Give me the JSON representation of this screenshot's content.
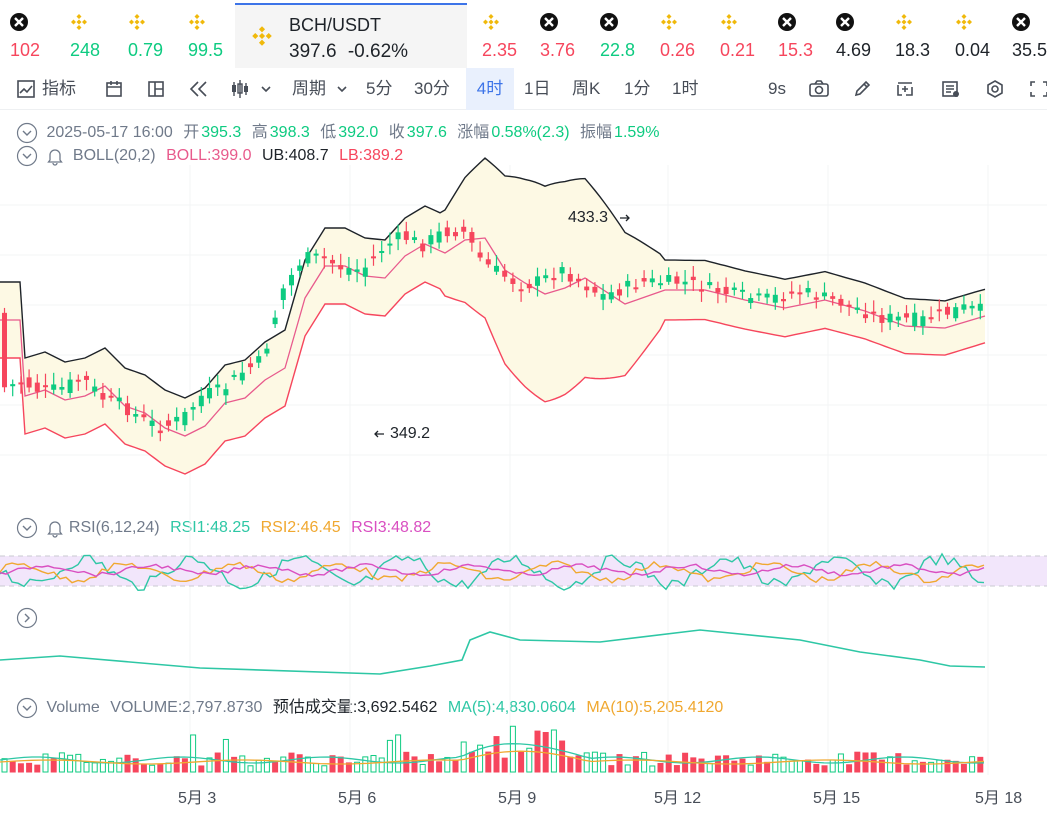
{
  "tickers_left": [
    {
      "price": "102",
      "dir": "dn",
      "icon": "x-coin-icon"
    },
    {
      "price": "248",
      "dir": "up",
      "icon": "binance-coin-icon"
    },
    {
      "price": "0.79",
      "dir": "up",
      "icon": "binance-coin-icon"
    },
    {
      "price": "99.5",
      "dir": "up",
      "icon": "binance-coin-icon"
    }
  ],
  "active_ticker": {
    "symbol": "BCH/USDT",
    "price": "397.6",
    "change": "-0.62%",
    "icon": "binance-coin-icon"
  },
  "tickers_right": [
    {
      "price": "2.35",
      "dir": "dn",
      "icon": "binance-coin-icon"
    },
    {
      "price": "3.76",
      "dir": "dn",
      "icon": "x-coin-icon"
    },
    {
      "price": "22.8",
      "dir": "up",
      "icon": "x-coin-icon"
    },
    {
      "price": "0.26",
      "dir": "dn",
      "icon": "binance-coin-icon"
    },
    {
      "price": "0.21",
      "dir": "dn",
      "icon": "binance-coin-icon"
    },
    {
      "price": "15.3",
      "dir": "dn",
      "icon": "x-coin-icon"
    },
    {
      "price": "4.69",
      "dir": "neu",
      "icon": "x-coin-icon"
    },
    {
      "price": "18.3",
      "dir": "neu",
      "icon": "binance-coin-icon"
    },
    {
      "price": "0.04",
      "dir": "neu",
      "icon": "binance-coin-icon"
    },
    {
      "price": "35.5",
      "dir": "neu",
      "icon": "x-coin-icon"
    }
  ],
  "toolbar": {
    "indicators": "指标",
    "period": "周期",
    "intervals": [
      "5分",
      "30分",
      "4时",
      "1日",
      "周K",
      "1分",
      "1时"
    ],
    "active_interval": "4时",
    "countdown": "9s"
  },
  "ohlc": {
    "date": "2025-05-17 16:00",
    "open_label": "开",
    "open": "395.3",
    "high_label": "高",
    "high": "398.3",
    "low_label": "低",
    "low": "392.0",
    "close_label": "收",
    "close": "397.6",
    "chg_label": "涨幅",
    "chg": "0.58%(2.3)",
    "amp_label": "振幅",
    "amp": "1.59%"
  },
  "boll": {
    "name": "BOLL(20,2)",
    "mid": "BOLL:399.0",
    "ub": "UB:408.7",
    "lb": "LB:389.2"
  },
  "rsi": {
    "name": "RSI(6,12,24)",
    "rsi1": "RSI1:48.25",
    "rsi2": "RSI2:46.45",
    "rsi3": "RSI3:48.82"
  },
  "volume": {
    "name": "Volume",
    "value": "VOLUME:2,797.8730",
    "estimate": "预估成交量:3,692.5462",
    "ma5": "MA(5):4,830.0604",
    "ma10": "MA(10):5,205.4120"
  },
  "annotations": {
    "high_mark": "433.3",
    "low_mark": "349.2"
  },
  "x_labels": [
    "5月 3",
    "5月 6",
    "5月 9",
    "5月 12",
    "5月 15",
    "5月 18"
  ],
  "colors": {
    "up": "#0ecb81",
    "down": "#f6465d",
    "accent": "#3d74e8",
    "boll_mid": "#e85a8c",
    "rsi1": "#2ec7a5",
    "rsi2": "#f0a830",
    "rsi3": "#d94fc1"
  }
}
